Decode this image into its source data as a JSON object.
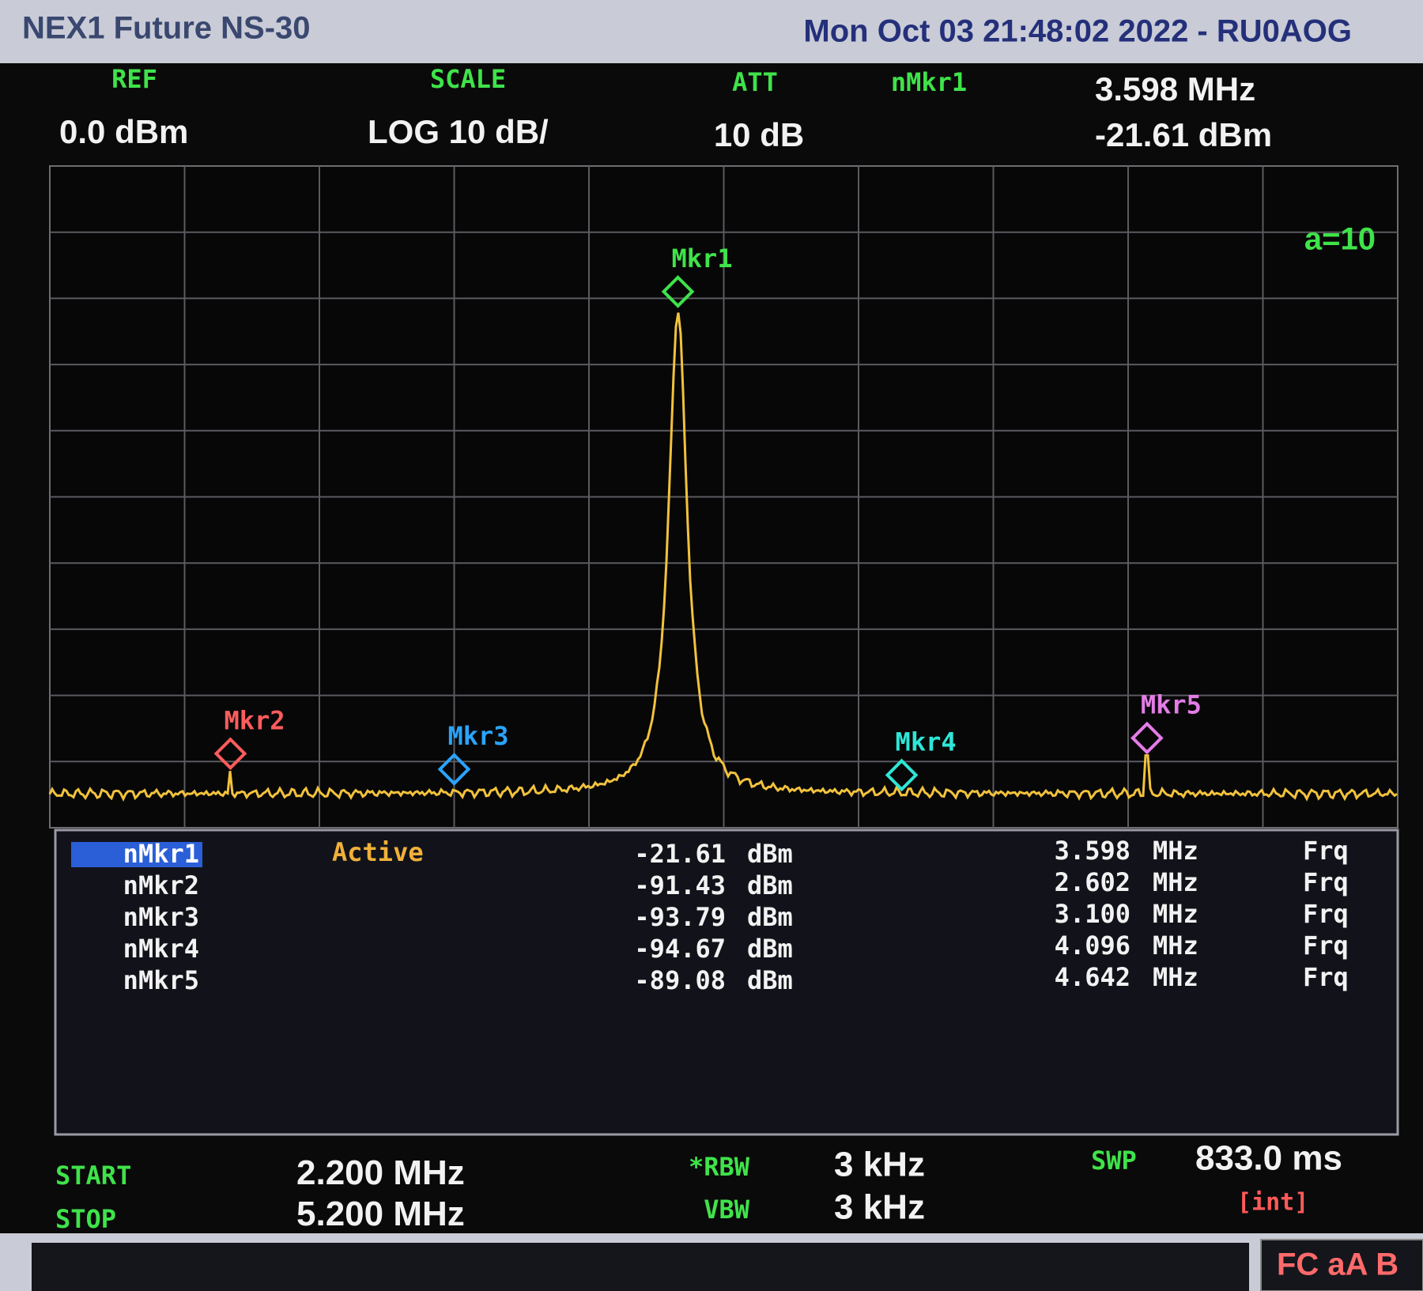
{
  "header": {
    "device": "NEX1 Future NS-30",
    "datetime": "Mon Oct 03 21:48:02 2022 - RU0AOG"
  },
  "settings": {
    "ref": {
      "label": "REF",
      "value": "0.0",
      "unit": "dBm"
    },
    "scale": {
      "label": "SCALE",
      "mode": "LOG",
      "value": "10",
      "unit": "dB/"
    },
    "att": {
      "label": "ATT",
      "value": "10 dB"
    },
    "active_marker": {
      "label": "nMkr1",
      "freq": "3.598 MHz",
      "level": "-21.61 dBm"
    }
  },
  "annotation": "a=10",
  "marker_table": {
    "status": "Active",
    "rows": [
      {
        "name": "nMkr1",
        "label": "Mkr1",
        "color": "#3fe34a",
        "level": "-21.61",
        "level_unit": "dBm",
        "freq": "3.598",
        "freq_unit": "MHz",
        "mode": "Frq"
      },
      {
        "name": "nMkr2",
        "label": "Mkr2",
        "color": "#ff5c5c",
        "level": "-91.43",
        "level_unit": "dBm",
        "freq": "2.602",
        "freq_unit": "MHz",
        "mode": "Frq"
      },
      {
        "name": "nMkr3",
        "label": "Mkr3",
        "color": "#2aa4ff",
        "level": "-93.79",
        "level_unit": "dBm",
        "freq": "3.100",
        "freq_unit": "MHz",
        "mode": "Frq"
      },
      {
        "name": "nMkr4",
        "label": "Mkr4",
        "color": "#2ee6d6",
        "level": "-94.67",
        "level_unit": "dBm",
        "freq": "4.096",
        "freq_unit": "MHz",
        "mode": "Frq"
      },
      {
        "name": "nMkr5",
        "label": "Mkr5",
        "color": "#e47ce8",
        "level": "-89.08",
        "level_unit": "dBm",
        "freq": "4.642",
        "freq_unit": "MHz",
        "mode": "Frq"
      }
    ]
  },
  "sweep": {
    "start": {
      "label": "START",
      "value": "2.200",
      "unit": "MHz"
    },
    "stop": {
      "label": "STOP",
      "value": "5.200",
      "unit": "MHz"
    },
    "rbw": {
      "label": "*RBW",
      "value": "3 kHz"
    },
    "vbw": {
      "label": "VBW",
      "value": "3 kHz"
    },
    "swp": {
      "label": "SWP",
      "value": "833.0 ms",
      "note": "[int]"
    }
  },
  "footer": "FC aA B"
}
